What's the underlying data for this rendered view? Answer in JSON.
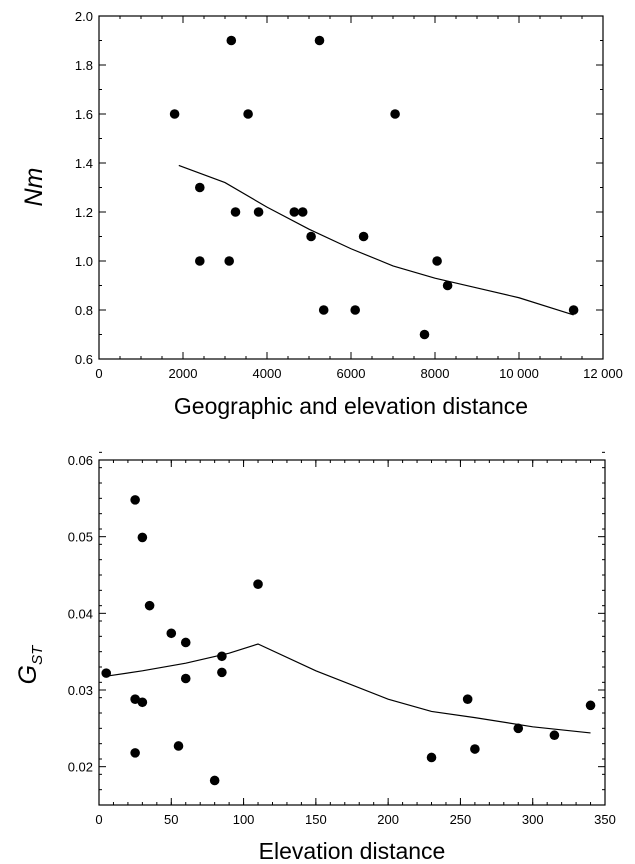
{
  "chart_data": [
    {
      "type": "scatter",
      "title": "",
      "xlabel": "Geographic and elevation distance",
      "ylabel": "Nm",
      "xlim": [
        0,
        12000
      ],
      "ylim": [
        0.6,
        2.0
      ],
      "x_ticks": [
        "0",
        "2000",
        "4000",
        "6000",
        "8000",
        "10 000",
        "12 000"
      ],
      "y_ticks": [
        "0.6",
        "0.8",
        "1.0",
        "1.2",
        "1.4",
        "1.6",
        "1.8",
        "2.0"
      ],
      "points": [
        {
          "x": 1800,
          "y": 1.6
        },
        {
          "x": 2400,
          "y": 1.3
        },
        {
          "x": 2400,
          "y": 1.0
        },
        {
          "x": 3100,
          "y": 1.0
        },
        {
          "x": 3150,
          "y": 1.9
        },
        {
          "x": 3250,
          "y": 1.2
        },
        {
          "x": 3550,
          "y": 1.6
        },
        {
          "x": 3800,
          "y": 1.2
        },
        {
          "x": 4650,
          "y": 1.2
        },
        {
          "x": 4850,
          "y": 1.2
        },
        {
          "x": 5050,
          "y": 1.1
        },
        {
          "x": 5250,
          "y": 1.9
        },
        {
          "x": 5350,
          "y": 0.8
        },
        {
          "x": 6100,
          "y": 0.8
        },
        {
          "x": 6300,
          "y": 1.1
        },
        {
          "x": 7050,
          "y": 1.6
        },
        {
          "x": 7750,
          "y": 0.7
        },
        {
          "x": 8050,
          "y": 1.0
        },
        {
          "x": 8300,
          "y": 0.9
        },
        {
          "x": 11300,
          "y": 0.8
        }
      ],
      "trend": {
        "x": [
          1900,
          3000,
          4000,
          5000,
          6000,
          7000,
          8000,
          9000,
          10000,
          11300
        ],
        "y": [
          1.39,
          1.32,
          1.22,
          1.13,
          1.05,
          0.98,
          0.93,
          0.89,
          0.85,
          0.78
        ]
      }
    },
    {
      "type": "scatter",
      "title": "",
      "xlabel": "Elevation distance",
      "ylabel": "G",
      "ylabel_sub": "ST",
      "xlim": [
        0,
        350
      ],
      "ylim": [
        0.015,
        0.06
      ],
      "x_ticks": [
        "0",
        "50",
        "100",
        "150",
        "200",
        "250",
        "300",
        "350"
      ],
      "y_ticks": [
        "0.02",
        "0.03",
        "0.04",
        "0.05",
        "0.06"
      ],
      "points": [
        {
          "x": 5,
          "y": 0.0322
        },
        {
          "x": 25,
          "y": 0.0548
        },
        {
          "x": 25,
          "y": 0.0288
        },
        {
          "x": 25,
          "y": 0.0218
        },
        {
          "x": 30,
          "y": 0.0499
        },
        {
          "x": 30,
          "y": 0.0284
        },
        {
          "x": 35,
          "y": 0.041
        },
        {
          "x": 50,
          "y": 0.0374
        },
        {
          "x": 55,
          "y": 0.0227
        },
        {
          "x": 60,
          "y": 0.0362
        },
        {
          "x": 60,
          "y": 0.0315
        },
        {
          "x": 80,
          "y": 0.0182
        },
        {
          "x": 85,
          "y": 0.0344
        },
        {
          "x": 85,
          "y": 0.0323
        },
        {
          "x": 110,
          "y": 0.0438
        },
        {
          "x": 230,
          "y": 0.0212
        },
        {
          "x": 255,
          "y": 0.0288
        },
        {
          "x": 260,
          "y": 0.0223
        },
        {
          "x": 290,
          "y": 0.025
        },
        {
          "x": 315,
          "y": 0.0241
        },
        {
          "x": 340,
          "y": 0.028
        }
      ],
      "trend": {
        "x": [
          5,
          30,
          60,
          90,
          110,
          150,
          200,
          230,
          260,
          300,
          340
        ],
        "y": [
          0.0318,
          0.0325,
          0.0335,
          0.0348,
          0.036,
          0.0325,
          0.0288,
          0.0272,
          0.0264,
          0.0252,
          0.0244
        ]
      }
    }
  ]
}
